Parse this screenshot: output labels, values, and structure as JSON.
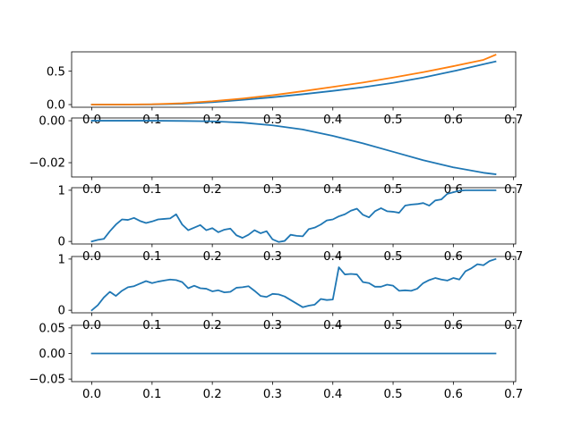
{
  "chart_data": [
    {
      "type": "line",
      "title": "",
      "xlabel": "",
      "ylabel": "",
      "xlim": [
        -0.0335,
        0.7035
      ],
      "ylim": [
        -0.04,
        0.79
      ],
      "xticks": [
        0.0,
        0.1,
        0.2,
        0.3,
        0.4,
        0.5,
        0.6,
        0.7
      ],
      "xtick_labels": [
        "0.0",
        "0.1",
        "0.2",
        "0.3",
        "0.4",
        "0.5",
        "0.6",
        "0.7"
      ],
      "yticks": [
        0.0,
        0.5
      ],
      "ytick_labels": [
        "0.0",
        "0.5"
      ],
      "grid": false,
      "series": [
        {
          "color": "#1f77b4",
          "x": [
            0.0,
            0.05,
            0.1,
            0.15,
            0.2,
            0.25,
            0.3,
            0.35,
            0.4,
            0.45,
            0.5,
            0.55,
            0.6,
            0.65,
            0.67
          ],
          "y": [
            0.0,
            0.0,
            0.003,
            0.012,
            0.035,
            0.07,
            0.11,
            0.155,
            0.205,
            0.26,
            0.325,
            0.405,
            0.5,
            0.605,
            0.645
          ]
        },
        {
          "color": "#ff7f0e",
          "x": [
            0.0,
            0.05,
            0.1,
            0.15,
            0.2,
            0.25,
            0.3,
            0.35,
            0.4,
            0.45,
            0.5,
            0.55,
            0.6,
            0.65,
            0.67
          ],
          "y": [
            0.0,
            0.0,
            0.005,
            0.02,
            0.05,
            0.09,
            0.14,
            0.2,
            0.265,
            0.33,
            0.405,
            0.485,
            0.575,
            0.67,
            0.745
          ]
        }
      ]
    },
    {
      "type": "line",
      "title": "",
      "xlabel": "",
      "ylabel": "",
      "xlim": [
        -0.0335,
        0.7035
      ],
      "ylim": [
        -0.0268,
        0.0013
      ],
      "xticks": [
        0.0,
        0.1,
        0.2,
        0.3,
        0.4,
        0.5,
        0.6,
        0.7
      ],
      "xtick_labels": [
        "0.0",
        "0.1",
        "0.2",
        "0.3",
        "0.4",
        "0.5",
        "0.6",
        "0.7"
      ],
      "yticks": [
        0.0,
        -0.02
      ],
      "ytick_labels": [
        "0.00",
        "−0.02"
      ],
      "grid": false,
      "series": [
        {
          "color": "#1f77b4",
          "x": [
            0.0,
            0.05,
            0.1,
            0.15,
            0.2,
            0.25,
            0.3,
            0.35,
            0.4,
            0.45,
            0.5,
            0.55,
            0.6,
            0.65,
            0.67
          ],
          "y": [
            0.0,
            0.0,
            0.0,
            -0.0001,
            -0.0003,
            -0.0009,
            -0.0022,
            -0.0042,
            -0.0072,
            -0.0108,
            -0.0148,
            -0.0188,
            -0.0222,
            -0.0248,
            -0.0255
          ]
        }
      ]
    },
    {
      "type": "line",
      "title": "",
      "xlabel": "",
      "ylabel": "",
      "xlim": [
        -0.0335,
        0.7035
      ],
      "ylim": [
        -0.05,
        1.05
      ],
      "xticks": [
        0.0,
        0.1,
        0.2,
        0.3,
        0.4,
        0.5,
        0.6,
        0.7
      ],
      "xtick_labels": [
        "0.0",
        "0.1",
        "0.2",
        "0.3",
        "0.4",
        "0.5",
        "0.6",
        "0.7"
      ],
      "yticks": [
        0,
        1
      ],
      "ytick_labels": [
        "0",
        "1"
      ],
      "grid": false,
      "series": [
        {
          "color": "#1f77b4",
          "x": [
            0.0,
            0.01,
            0.02,
            0.03,
            0.04,
            0.05,
            0.06,
            0.07,
            0.08,
            0.09,
            0.1,
            0.11,
            0.12,
            0.13,
            0.14,
            0.15,
            0.16,
            0.17,
            0.18,
            0.19,
            0.2,
            0.21,
            0.22,
            0.23,
            0.24,
            0.25,
            0.26,
            0.27,
            0.28,
            0.29,
            0.3,
            0.31,
            0.32,
            0.33,
            0.34,
            0.35,
            0.36,
            0.37,
            0.38,
            0.39,
            0.4,
            0.41,
            0.42,
            0.43,
            0.44,
            0.45,
            0.46,
            0.47,
            0.48,
            0.49,
            0.5,
            0.51,
            0.52,
            0.53,
            0.54,
            0.55,
            0.56,
            0.57,
            0.58,
            0.59,
            0.6,
            0.61,
            0.62,
            0.63,
            0.64,
            0.65,
            0.66,
            0.67
          ],
          "y": [
            0.0,
            0.03,
            0.05,
            0.2,
            0.33,
            0.43,
            0.42,
            0.46,
            0.4,
            0.36,
            0.39,
            0.43,
            0.44,
            0.45,
            0.53,
            0.33,
            0.22,
            0.27,
            0.32,
            0.22,
            0.26,
            0.18,
            0.23,
            0.25,
            0.12,
            0.07,
            0.13,
            0.22,
            0.16,
            0.2,
            0.04,
            -0.01,
            0.01,
            0.13,
            0.11,
            0.1,
            0.24,
            0.27,
            0.33,
            0.41,
            0.43,
            0.49,
            0.53,
            0.6,
            0.64,
            0.52,
            0.47,
            0.59,
            0.65,
            0.59,
            0.58,
            0.56,
            0.7,
            0.72,
            0.73,
            0.75,
            0.7,
            0.8,
            0.82,
            0.93,
            0.96,
            0.99,
            1.0,
            1.0,
            1.0,
            1.0,
            1.0,
            1.0
          ]
        }
      ]
    },
    {
      "type": "line",
      "title": "",
      "xlabel": "",
      "ylabel": "",
      "xlim": [
        -0.0335,
        0.7035
      ],
      "ylim": [
        -0.05,
        1.05
      ],
      "xticks": [
        0.0,
        0.1,
        0.2,
        0.3,
        0.4,
        0.5,
        0.6,
        0.7
      ],
      "xtick_labels": [
        "0.0",
        "0.1",
        "0.2",
        "0.3",
        "0.4",
        "0.5",
        "0.6",
        "0.7"
      ],
      "yticks": [
        0,
        1
      ],
      "ytick_labels": [
        "0",
        "1"
      ],
      "grid": false,
      "series": [
        {
          "color": "#1f77b4",
          "x": [
            0.0,
            0.01,
            0.02,
            0.03,
            0.04,
            0.05,
            0.06,
            0.07,
            0.08,
            0.09,
            0.1,
            0.11,
            0.12,
            0.13,
            0.14,
            0.15,
            0.16,
            0.17,
            0.18,
            0.19,
            0.2,
            0.21,
            0.22,
            0.23,
            0.24,
            0.25,
            0.26,
            0.27,
            0.28,
            0.29,
            0.3,
            0.31,
            0.32,
            0.33,
            0.34,
            0.35,
            0.36,
            0.37,
            0.38,
            0.39,
            0.4,
            0.41,
            0.42,
            0.43,
            0.44,
            0.45,
            0.46,
            0.47,
            0.48,
            0.49,
            0.5,
            0.51,
            0.52,
            0.53,
            0.54,
            0.55,
            0.56,
            0.57,
            0.58,
            0.59,
            0.6,
            0.61,
            0.62,
            0.63,
            0.64,
            0.65,
            0.66,
            0.67
          ],
          "y": [
            0.0,
            0.1,
            0.25,
            0.36,
            0.28,
            0.38,
            0.45,
            0.47,
            0.52,
            0.57,
            0.53,
            0.56,
            0.58,
            0.6,
            0.59,
            0.55,
            0.43,
            0.48,
            0.43,
            0.42,
            0.37,
            0.39,
            0.35,
            0.36,
            0.44,
            0.45,
            0.47,
            0.38,
            0.28,
            0.26,
            0.32,
            0.31,
            0.27,
            0.2,
            0.13,
            0.06,
            0.09,
            0.11,
            0.22,
            0.2,
            0.21,
            0.84,
            0.7,
            0.71,
            0.7,
            0.55,
            0.53,
            0.46,
            0.46,
            0.5,
            0.48,
            0.38,
            0.39,
            0.38,
            0.42,
            0.53,
            0.59,
            0.63,
            0.6,
            0.58,
            0.63,
            0.6,
            0.76,
            0.82,
            0.9,
            0.88,
            0.96,
            1.0
          ]
        }
      ]
    },
    {
      "type": "line",
      "title": "",
      "xlabel": "",
      "ylabel": "",
      "xlim": [
        -0.0335,
        0.7035
      ],
      "ylim": [
        -0.055,
        0.055
      ],
      "xticks": [
        0.0,
        0.1,
        0.2,
        0.3,
        0.4,
        0.5,
        0.6,
        0.7
      ],
      "xtick_labels": [
        "0.0",
        "0.1",
        "0.2",
        "0.3",
        "0.4",
        "0.5",
        "0.6",
        "0.7"
      ],
      "yticks": [
        -0.05,
        0.0,
        0.05
      ],
      "ytick_labels": [
        "−0.05",
        "0.00",
        "0.05"
      ],
      "grid": false,
      "series": [
        {
          "color": "#1f77b4",
          "x": [
            0.0,
            0.67
          ],
          "y": [
            0.0,
            0.0
          ]
        }
      ]
    }
  ]
}
